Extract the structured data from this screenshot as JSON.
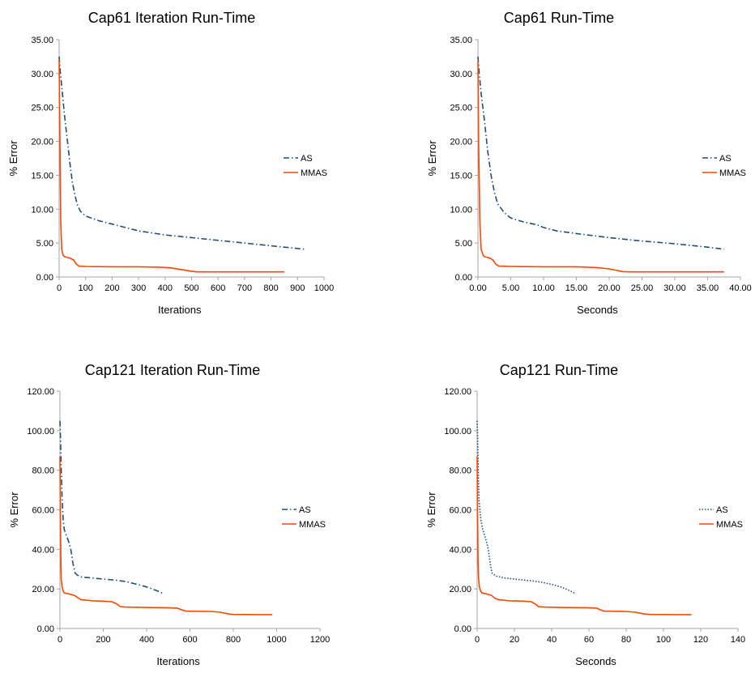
{
  "colors": {
    "as_series": "#1f4e79",
    "mmas_series": "#ff4500",
    "axis": "#a6a6a6"
  },
  "chart_data": [
    {
      "type": "line",
      "title": "Cap61 Iteration Run-Time",
      "xlabel": "Iterations",
      "ylabel": "% Error",
      "xlim": [
        0,
        1000
      ],
      "ylim": [
        0,
        35
      ],
      "xticks": [
        0,
        100,
        200,
        300,
        400,
        500,
        600,
        700,
        800,
        900,
        1000
      ],
      "xtick_labels": [
        "0",
        "100",
        "200",
        "300",
        "400",
        "500",
        "600",
        "700",
        "800",
        "900",
        "1000"
      ],
      "yticks": [
        0,
        5,
        10,
        15,
        20,
        25,
        30,
        35
      ],
      "ytick_labels": [
        "0.00",
        "5.00",
        "10.00",
        "15.00",
        "20.00",
        "25.00",
        "30.00",
        "35.00"
      ],
      "legend_position": "right",
      "grid": false,
      "series": [
        {
          "name": "AS",
          "style": "dashdot",
          "color": "#1f4e79",
          "x": [
            0,
            5,
            10,
            20,
            30,
            40,
            50,
            60,
            70,
            80,
            100,
            150,
            200,
            250,
            300,
            400,
            500,
            600,
            700,
            800,
            900,
            925
          ],
          "y": [
            32.5,
            30,
            28,
            24,
            20.5,
            17,
            14,
            12,
            10.5,
            9.7,
            9,
            8.3,
            7.8,
            7.3,
            6.8,
            6.2,
            5.8,
            5.4,
            5,
            4.6,
            4.2,
            4.1
          ]
        },
        {
          "name": "MMAS",
          "style": "solid",
          "color": "#ff4500",
          "x": [
            0,
            3,
            6,
            10,
            15,
            20,
            40,
            55,
            65,
            75,
            100,
            200,
            300,
            380,
            420,
            460,
            500,
            520,
            600,
            700,
            850
          ],
          "y": [
            32,
            20,
            8,
            4,
            3.2,
            3,
            2.8,
            2.5,
            1.9,
            1.6,
            1.55,
            1.5,
            1.5,
            1.45,
            1.35,
            1.1,
            0.85,
            0.75,
            0.75,
            0.75,
            0.75
          ]
        }
      ]
    },
    {
      "type": "line",
      "title": "Cap61 Run-Time",
      "xlabel": "Seconds",
      "ylabel": "% Error",
      "xlim": [
        0,
        40
      ],
      "ylim": [
        0,
        35
      ],
      "xticks": [
        0,
        5,
        10,
        15,
        20,
        25,
        30,
        35,
        40
      ],
      "xtick_labels": [
        "0.00",
        "5.00",
        "10.00",
        "15.00",
        "20.00",
        "25.00",
        "30.00",
        "35.00",
        "40.00"
      ],
      "yticks": [
        0,
        5,
        10,
        15,
        20,
        25,
        30,
        35
      ],
      "ytick_labels": [
        "0.00",
        "5.00",
        "10.00",
        "15.00",
        "20.00",
        "25.00",
        "30.00",
        "35.00"
      ],
      "legend_position": "right",
      "grid": false,
      "series": [
        {
          "name": "AS",
          "style": "dashdot",
          "color": "#1f4e79",
          "x": [
            0,
            0.2,
            0.5,
            1,
            1.5,
            2,
            2.5,
            3,
            4,
            5,
            7,
            9,
            10,
            12,
            15,
            20,
            25,
            30,
            35,
            37.5
          ],
          "y": [
            32.5,
            30,
            27,
            23,
            18.5,
            15,
            12.5,
            10.8,
            9.5,
            8.7,
            8.1,
            7.7,
            7.3,
            6.8,
            6.4,
            5.8,
            5.3,
            4.9,
            4.4,
            4.1
          ]
        },
        {
          "name": "MMAS",
          "style": "solid",
          "color": "#ff4500",
          "x": [
            0,
            0.1,
            0.3,
            0.5,
            0.8,
            1,
            1.8,
            2.3,
            2.7,
            3.2,
            5,
            10,
            15,
            18,
            20,
            21,
            22,
            23,
            30,
            37.5
          ],
          "y": [
            32,
            20,
            8,
            4,
            3.2,
            3,
            2.8,
            2.5,
            1.9,
            1.6,
            1.55,
            1.5,
            1.5,
            1.4,
            1.2,
            1,
            0.8,
            0.75,
            0.75,
            0.75
          ]
        }
      ]
    },
    {
      "type": "line",
      "title": "Cap121 Iteration Run-Time",
      "xlabel": "Iterations",
      "ylabel": "% Error",
      "xlim": [
        0,
        1200
      ],
      "ylim": [
        0,
        120
      ],
      "xticks": [
        0,
        200,
        400,
        600,
        800,
        1000,
        1200
      ],
      "xtick_labels": [
        "0",
        "200",
        "400",
        "600",
        "800",
        "1000",
        "1200"
      ],
      "yticks": [
        0,
        20,
        40,
        60,
        80,
        100,
        120
      ],
      "ytick_labels": [
        "0.00",
        "20.00",
        "40.00",
        "60.00",
        "80.00",
        "100.00",
        "120.00"
      ],
      "legend_position": "right",
      "grid": false,
      "series": [
        {
          "name": "AS",
          "style": "dashdot",
          "color": "#1f4e79",
          "x": [
            0,
            3,
            6,
            10,
            15,
            20,
            30,
            40,
            50,
            60,
            70,
            80,
            100,
            150,
            200,
            250,
            300,
            350,
            400,
            450,
            480
          ],
          "y": [
            105,
            95,
            80,
            65,
            55,
            50,
            47,
            44,
            40,
            33,
            28,
            27,
            26,
            25.5,
            25,
            24.5,
            23.8,
            22.5,
            21,
            19,
            17.5
          ]
        },
        {
          "name": "MMAS",
          "style": "solid",
          "color": "#ff4500",
          "x": [
            0,
            2,
            4,
            6,
            10,
            15,
            20,
            40,
            60,
            70,
            90,
            100,
            150,
            200,
            240,
            260,
            280,
            300,
            400,
            500,
            540,
            560,
            580,
            700,
            740,
            780,
            800,
            900,
            980
          ],
          "y": [
            87,
            60,
            35,
            25,
            21,
            19,
            18,
            17.5,
            17,
            16.5,
            15,
            14.5,
            14,
            13.8,
            13.5,
            12.5,
            11,
            10.8,
            10.6,
            10.5,
            10.3,
            9.5,
            8.8,
            8.6,
            8.2,
            7.3,
            7.1,
            7,
            7
          ]
        }
      ]
    },
    {
      "type": "line",
      "title": "Cap121 Run-Time",
      "xlabel": "Seconds",
      "ylabel": "% Error",
      "xlim": [
        0,
        140
      ],
      "ylim": [
        0,
        120
      ],
      "xticks": [
        0,
        20,
        40,
        60,
        80,
        100,
        120,
        140
      ],
      "xtick_labels": [
        "0",
        "20",
        "40",
        "60",
        "80",
        "100",
        "120",
        "140"
      ],
      "yticks": [
        0,
        20,
        40,
        60,
        80,
        100,
        120
      ],
      "ytick_labels": [
        "0.00",
        "20.00",
        "40.00",
        "60.00",
        "80.00",
        "100.00",
        "120.00"
      ],
      "legend_position": "right",
      "grid": false,
      "series": [
        {
          "name": "AS",
          "style": "dotted",
          "color": "#1f4e79",
          "x": [
            0,
            0.3,
            0.6,
            1,
            2,
            3,
            4,
            5,
            6,
            7,
            8,
            10,
            15,
            20,
            25,
            30,
            35,
            40,
            45,
            50,
            53
          ],
          "y": [
            105,
            95,
            80,
            65,
            55,
            50,
            47,
            44,
            40,
            33,
            28,
            26.5,
            25.5,
            25,
            24.5,
            24,
            23.3,
            22.3,
            21,
            19,
            17.5
          ]
        },
        {
          "name": "MMAS",
          "style": "solid",
          "color": "#ff4500",
          "x": [
            0,
            0.2,
            0.5,
            0.8,
            1.2,
            1.8,
            2.5,
            5,
            7,
            8,
            10,
            12,
            17,
            25,
            29,
            31,
            33,
            36,
            45,
            60,
            64,
            66,
            68,
            80,
            85,
            90,
            93,
            105,
            115
          ],
          "y": [
            87,
            60,
            35,
            25,
            21,
            19,
            18,
            17.5,
            17,
            16.5,
            15,
            14.5,
            14,
            13.8,
            13.5,
            12.5,
            11,
            10.8,
            10.6,
            10.5,
            10.3,
            9.5,
            8.8,
            8.6,
            8.2,
            7.3,
            7.1,
            7,
            7
          ]
        }
      ]
    }
  ]
}
